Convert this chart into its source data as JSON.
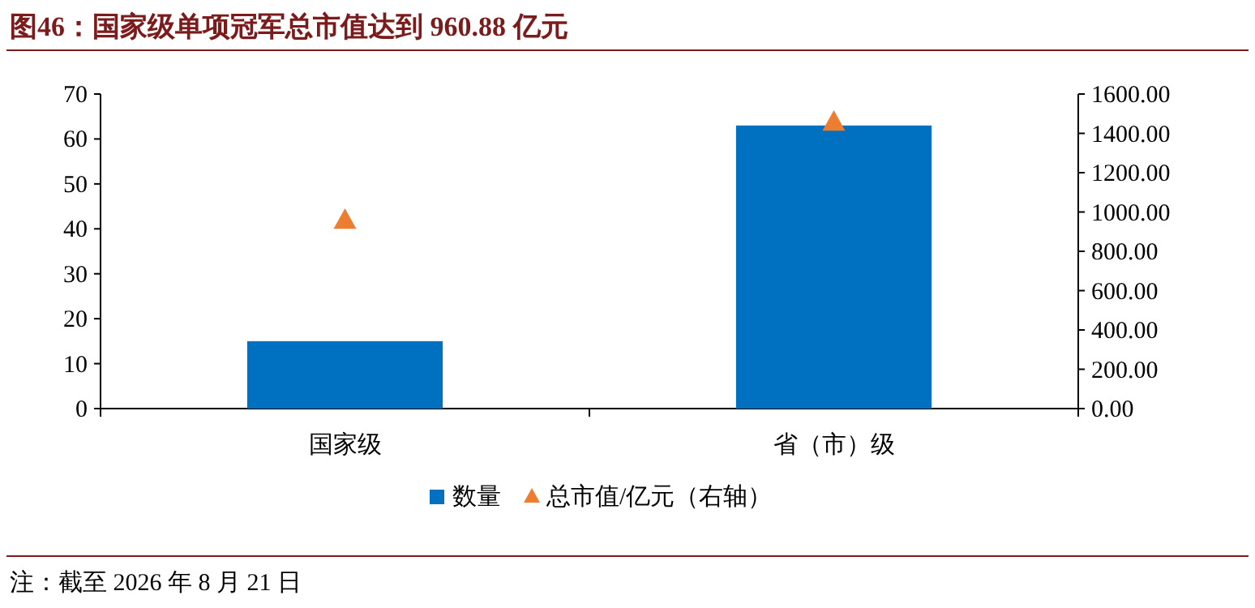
{
  "chart_data": {
    "type": "bar",
    "title": "图46：国家级单项冠军总市值达到 960.88 亿元",
    "categories": [
      "国家级",
      "省（市）级"
    ],
    "series": [
      {
        "name": "数量",
        "color": "#0070c0",
        "values": [
          15,
          63
        ]
      },
      {
        "name": "总市值/亿元（右轴）",
        "type": "scatter",
        "axis": "y2",
        "marker": "triangle",
        "color": "#ed7d31",
        "values": [
          960.88,
          1460
        ]
      }
    ],
    "ylim": [
      0,
      70
    ],
    "yticks": [
      0,
      10,
      20,
      30,
      40,
      50,
      60,
      70
    ],
    "y2lim": [
      0,
      1600
    ],
    "y2ticks": [
      {
        "value": 0,
        "label": "0.00"
      },
      {
        "value": 200,
        "label": "200.00"
      },
      {
        "value": 400,
        "label": "400.00"
      },
      {
        "value": 600,
        "label": "600.00"
      },
      {
        "value": 800,
        "label": "800.00"
      },
      {
        "value": 1000,
        "label": "1000.00"
      },
      {
        "value": 1200,
        "label": "1200.00"
      },
      {
        "value": 1400,
        "label": "1400.00"
      },
      {
        "value": 1600,
        "label": "1600.00"
      }
    ],
    "grid": false,
    "legend": "bottom",
    "annotations": [
      "注：截至 2026 年 8 月 21 日"
    ]
  }
}
